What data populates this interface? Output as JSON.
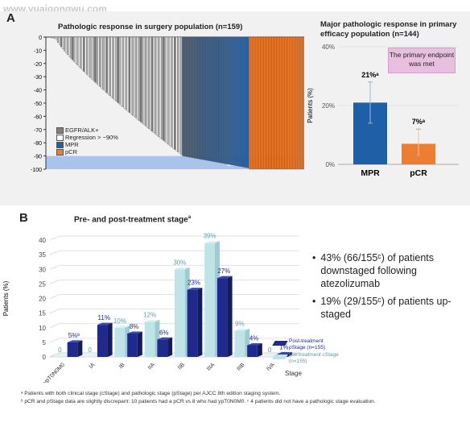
{
  "watermark": "www.yuaigongwu.com",
  "panel_a": {
    "letter": "A",
    "waterfall": {
      "title": "Pathologic response in surgery population (n=159)",
      "y_ticks": [
        "0",
        "-10",
        "-20",
        "-30",
        "-40",
        "-50",
        "-60",
        "-70",
        "-80",
        "-90",
        "-100"
      ],
      "band_label": "MPR",
      "legend": [
        {
          "label": "EGFR/ALK+",
          "color": "#7f7f7f"
        },
        {
          "label": "Regression > −90%",
          "color": "#ffffff"
        },
        {
          "label": "MPR",
          "color": "#1f5fa8"
        },
        {
          "label": "pCR",
          "color": "#ed7d31"
        }
      ]
    },
    "bar": {
      "title": "Major pathologic response in primary efficacy population (n=144)",
      "ylabel": "Patients (%)",
      "y_ticks": [
        "40%",
        "20%",
        "0%"
      ],
      "callout": "The primary endpoint was met"
    }
  },
  "panel_b": {
    "letter": "B",
    "title": "Pre- and post-treatment stage",
    "title_sup": "a",
    "ylabel": "Patients (%)",
    "xlabel": "Stage",
    "y_ticks": [
      "0",
      "5",
      "10",
      "15",
      "20",
      "25",
      "30",
      "35",
      "40"
    ],
    "legend_post": "Post-treatment pStage (n=155)",
    "legend_pre": "Pre-treatment cStage (n=155)",
    "bullets": [
      "43% (66/155ᶜ) of patients downstaged following atezolizumab",
      "19% (29/155ᶜ) of patients up-staged"
    ]
  },
  "footnotes": [
    "ᵃ Patients with both clinical stage (cStage) and pathologic stage (pStage) per AJCC 8th edition staging system.",
    "ᵇ pCR and pStage data are slightly discrepant: 10 patients had a pCR vs 8 who had ypT0N0M0. ᶜ 4 patients did not have a pathologic stage evaluation."
  ],
  "colors": {
    "mpr_blue": "#1f5fa8",
    "pcr_orange": "#ed7d31",
    "egfr_gray": "#7f7f7f",
    "post_navy": "#1f2a8c",
    "pre_teal": "#bfe3e6",
    "title_blue": "#1f3a93",
    "callout_pink": "#e9bfe0",
    "band_blue": "#a9c4ec"
  },
  "chart_data": [
    {
      "type": "bar",
      "chart": "waterfall",
      "title": "Pathologic response in surgery population (n=159)",
      "ylim": [
        -100,
        0
      ],
      "n_patients": 159,
      "bar_sizes": {
        "near_zero": 6,
        "non_mpr": 78,
        "mpr": 41,
        "pcr": 34
      },
      "near_zero_range": [
        0,
        -1
      ],
      "non_mpr_range": [
        -2,
        -89
      ],
      "mpr_range": [
        -90,
        -99
      ],
      "pcr_value": -100,
      "notes": "MPR shaded band from -90 to -100"
    },
    {
      "type": "bar",
      "chart": "mpr_pcr",
      "title": "Major pathologic response in primary efficacy population (n=144)",
      "categories": [
        "MPR",
        "pCR"
      ],
      "values": [
        21,
        7
      ],
      "data_labels": [
        "21%ᵃ",
        "7%ᵃ"
      ],
      "error_low": [
        14,
        3
      ],
      "error_high": [
        28,
        12
      ],
      "ylabel": "Patients (%)",
      "ylim": [
        0,
        40
      ]
    },
    {
      "type": "bar",
      "chart": "stage",
      "title": "Pre- and post-treatment stage",
      "categories": [
        "ypT0N0M0",
        "IA",
        "IB",
        "IIA",
        "IIB",
        "IIIA",
        "IIIB",
        "IVA"
      ],
      "series": [
        {
          "name": "Post-treatment pStage (n=155)",
          "values": [
            5,
            11,
            8,
            6,
            23,
            27,
            4,
            1
          ],
          "labels": [
            "5%ᵇ",
            "11%",
            "8%",
            "6%",
            "23%",
            "27%",
            "4%",
            "1%"
          ]
        },
        {
          "name": "Pre-treatment cStage (n=155)",
          "values": [
            0,
            0,
            10,
            12,
            30,
            39,
            9,
            0
          ],
          "labels": [
            "0",
            "0",
            "10%",
            "12%",
            "30%",
            "39%",
            "9%",
            "0"
          ]
        }
      ],
      "xlabel": "Stage",
      "ylabel": "Patients (%)",
      "ylim": [
        0,
        40
      ]
    }
  ]
}
